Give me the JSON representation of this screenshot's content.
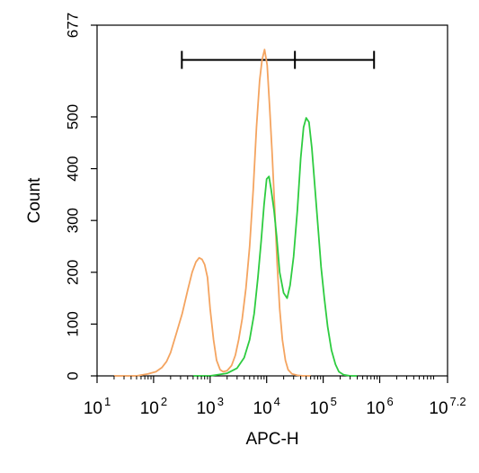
{
  "chart_data": {
    "type": "line",
    "title": "",
    "xlabel": "APC-H",
    "ylabel": "Count",
    "xscale": "log",
    "xlim": [
      10,
      15848931.9
    ],
    "ylim": [
      0,
      677
    ],
    "xticks": [
      {
        "value": 10,
        "base": "10",
        "exp": "1"
      },
      {
        "value": 100,
        "base": "10",
        "exp": "2"
      },
      {
        "value": 1000,
        "base": "10",
        "exp": "3"
      },
      {
        "value": 10000,
        "base": "10",
        "exp": "4"
      },
      {
        "value": 100000,
        "base": "10",
        "exp": "5"
      },
      {
        "value": 1000000,
        "base": "10",
        "exp": "6"
      },
      {
        "value": 15848931.9,
        "base": "10",
        "exp": "7.2"
      }
    ],
    "yticks": [
      {
        "value": 0,
        "label": "0"
      },
      {
        "value": 100,
        "label": "100"
      },
      {
        "value": 200,
        "label": "200"
      },
      {
        "value": 300,
        "label": "300"
      },
      {
        "value": 400,
        "label": "400"
      },
      {
        "value": 500,
        "label": "500"
      },
      {
        "value": 677,
        "label": "677"
      }
    ],
    "grid": false,
    "gate": {
      "left": 316,
      "mid": 31623,
      "right": 794328,
      "y": 610
    },
    "series": [
      {
        "color": "#F4A460",
        "points": [
          [
            20,
            0
          ],
          [
            50,
            0
          ],
          [
            80,
            4
          ],
          [
            110,
            8
          ],
          [
            140,
            16
          ],
          [
            170,
            28
          ],
          [
            200,
            45
          ],
          [
            250,
            80
          ],
          [
            320,
            120
          ],
          [
            400,
            165
          ],
          [
            480,
            200
          ],
          [
            560,
            220
          ],
          [
            640,
            228
          ],
          [
            720,
            225
          ],
          [
            800,
            215
          ],
          [
            900,
            190
          ],
          [
            1000,
            130
          ],
          [
            1150,
            70
          ],
          [
            1300,
            30
          ],
          [
            1500,
            12
          ],
          [
            1700,
            8
          ],
          [
            2000,
            10
          ],
          [
            2400,
            20
          ],
          [
            2800,
            40
          ],
          [
            3200,
            70
          ],
          [
            3700,
            110
          ],
          [
            4300,
            170
          ],
          [
            5000,
            250
          ],
          [
            5800,
            360
          ],
          [
            6600,
            480
          ],
          [
            7500,
            570
          ],
          [
            8300,
            610
          ],
          [
            9200,
            630
          ],
          [
            10200,
            600
          ],
          [
            11300,
            520
          ],
          [
            12500,
            430
          ],
          [
            13800,
            330
          ],
          [
            15300,
            220
          ],
          [
            17000,
            130
          ],
          [
            19000,
            70
          ],
          [
            21500,
            30
          ],
          [
            24000,
            12
          ],
          [
            28000,
            4
          ],
          [
            35000,
            1
          ],
          [
            45000,
            0
          ],
          [
            60000,
            0
          ]
        ]
      },
      {
        "color": "#2ECC40",
        "points": [
          [
            500,
            0
          ],
          [
            1000,
            0
          ],
          [
            2000,
            5
          ],
          [
            3000,
            15
          ],
          [
            4000,
            35
          ],
          [
            5000,
            70
          ],
          [
            6000,
            120
          ],
          [
            7000,
            190
          ],
          [
            8000,
            260
          ],
          [
            9000,
            330
          ],
          [
            10000,
            380
          ],
          [
            11000,
            385
          ],
          [
            12000,
            360
          ],
          [
            13500,
            320
          ],
          [
            15000,
            270
          ],
          [
            17000,
            200
          ],
          [
            20000,
            160
          ],
          [
            23000,
            150
          ],
          [
            26000,
            175
          ],
          [
            30000,
            230
          ],
          [
            35000,
            320
          ],
          [
            40000,
            420
          ],
          [
            45000,
            480
          ],
          [
            50000,
            498
          ],
          [
            56000,
            490
          ],
          [
            63000,
            440
          ],
          [
            72000,
            360
          ],
          [
            82000,
            280
          ],
          [
            92000,
            210
          ],
          [
            105000,
            150
          ],
          [
            120000,
            95
          ],
          [
            140000,
            50
          ],
          [
            165000,
            22
          ],
          [
            190000,
            8
          ],
          [
            230000,
            2
          ],
          [
            300000,
            0
          ],
          [
            400000,
            0
          ]
        ]
      }
    ]
  }
}
